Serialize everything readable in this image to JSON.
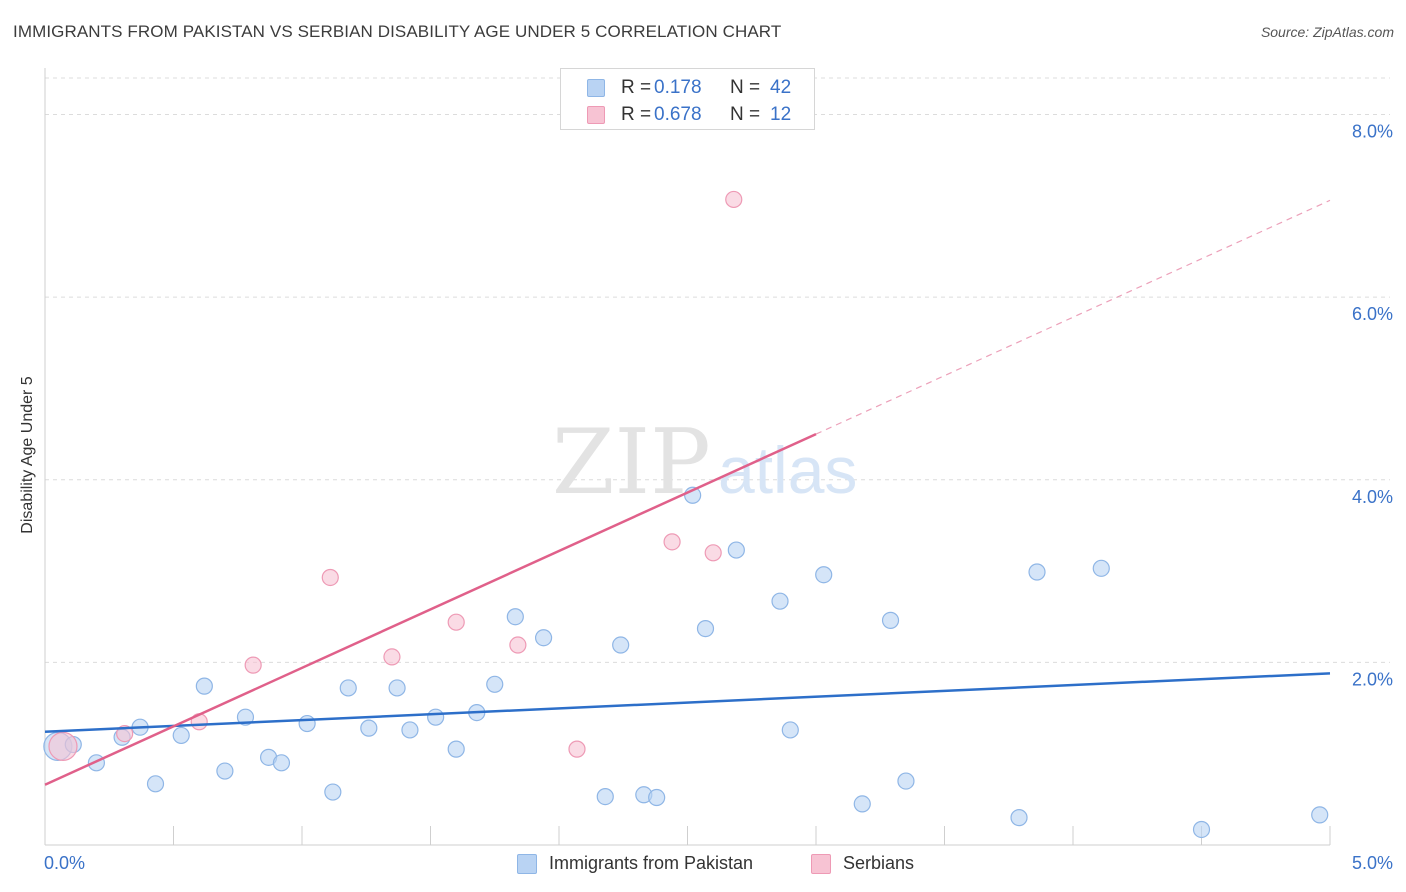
{
  "title": "IMMIGRANTS FROM PAKISTAN VS SERBIAN DISABILITY AGE UNDER 5 CORRELATION CHART",
  "source": "Source: ZipAtlas.com",
  "watermark": {
    "zip": "ZIP",
    "atlas": "atlas"
  },
  "colors": {
    "blue_fill": "#b9d3f3",
    "blue_stroke": "#8fb6e6",
    "blue_line": "#2d6fc9",
    "pink_fill": "#f7c3d3",
    "pink_stroke": "#ee9ab5",
    "pink_line": "#e0608a",
    "tick_label": "#3a72c8",
    "grid": "#dcdcdc"
  },
  "legend_top": {
    "rows": [
      {
        "r_label": "R =",
        "r_value": "0.178",
        "n_label": "N =",
        "n_value": "42",
        "color": "#b9d3f3"
      },
      {
        "r_label": "R =",
        "r_value": "0.678",
        "n_label": "N =",
        "n_value": "12",
        "color": "#f7c3d3"
      }
    ]
  },
  "legend_bottom": [
    {
      "label": "Immigrants from Pakistan",
      "color": "#b9d3f3"
    },
    {
      "label": "Serbians",
      "color": "#f7c3d3"
    }
  ],
  "chart_data": {
    "type": "scatter",
    "title": "IMMIGRANTS FROM PAKISTAN VS SERBIAN DISABILITY AGE UNDER 5 CORRELATION CHART",
    "xlabel": "",
    "ylabel": "Disability Age Under 5",
    "xlim": [
      0,
      5.0
    ],
    "ylim": [
      0,
      8.4
    ],
    "x_tick_labels": [
      "0.0%",
      "5.0%"
    ],
    "y_ticks": [
      2.0,
      4.0,
      6.0,
      8.0
    ],
    "y_tick_labels": [
      "2.0%",
      "4.0%",
      "6.0%",
      "8.0%"
    ],
    "grid": true,
    "legend_position": "top-center",
    "series": [
      {
        "name": "Immigrants from Pakistan",
        "r": 0.178,
        "n": 42,
        "trend": {
          "x": [
            0.0,
            5.0
          ],
          "y": [
            1.24,
            1.88
          ]
        },
        "points": [
          {
            "x": 0.05,
            "y": 1.08,
            "big": true
          },
          {
            "x": 0.11,
            "y": 1.1
          },
          {
            "x": 0.2,
            "y": 0.9
          },
          {
            "x": 0.3,
            "y": 1.18
          },
          {
            "x": 0.37,
            "y": 1.29
          },
          {
            "x": 0.43,
            "y": 0.67
          },
          {
            "x": 0.53,
            "y": 1.2
          },
          {
            "x": 0.62,
            "y": 1.74
          },
          {
            "x": 0.7,
            "y": 0.81
          },
          {
            "x": 0.78,
            "y": 1.4
          },
          {
            "x": 0.87,
            "y": 0.96
          },
          {
            "x": 0.92,
            "y": 0.9
          },
          {
            "x": 1.02,
            "y": 1.33
          },
          {
            "x": 1.12,
            "y": 0.58
          },
          {
            "x": 1.18,
            "y": 1.72
          },
          {
            "x": 1.26,
            "y": 1.28
          },
          {
            "x": 1.37,
            "y": 1.72
          },
          {
            "x": 1.42,
            "y": 1.26
          },
          {
            "x": 1.52,
            "y": 1.4
          },
          {
            "x": 1.6,
            "y": 1.05
          },
          {
            "x": 1.68,
            "y": 1.45
          },
          {
            "x": 1.75,
            "y": 1.76
          },
          {
            "x": 1.83,
            "y": 2.5
          },
          {
            "x": 1.94,
            "y": 2.27
          },
          {
            "x": 2.18,
            "y": 0.53
          },
          {
            "x": 2.24,
            "y": 2.19
          },
          {
            "x": 2.33,
            "y": 0.55
          },
          {
            "x": 2.38,
            "y": 0.52
          },
          {
            "x": 2.52,
            "y": 3.83
          },
          {
            "x": 2.57,
            "y": 2.37
          },
          {
            "x": 2.69,
            "y": 3.23
          },
          {
            "x": 2.86,
            "y": 2.67
          },
          {
            "x": 2.9,
            "y": 1.26
          },
          {
            "x": 3.03,
            "y": 2.96
          },
          {
            "x": 3.18,
            "y": 0.45
          },
          {
            "x": 3.29,
            "y": 2.46
          },
          {
            "x": 3.35,
            "y": 0.7
          },
          {
            "x": 3.79,
            "y": 0.3
          },
          {
            "x": 3.86,
            "y": 2.99
          },
          {
            "x": 4.11,
            "y": 3.03
          },
          {
            "x": 4.5,
            "y": 0.17
          },
          {
            "x": 4.96,
            "y": 0.33
          }
        ]
      },
      {
        "name": "Serbians",
        "r": 0.678,
        "n": 12,
        "trend": {
          "x": [
            0.0,
            3.0
          ],
          "y": [
            0.66,
            4.5
          ]
        },
        "trend_dashed": {
          "x": [
            3.0,
            5.0
          ],
          "y": [
            4.5,
            7.06
          ]
        },
        "points": [
          {
            "x": 0.07,
            "y": 1.08,
            "big": true
          },
          {
            "x": 0.31,
            "y": 1.22
          },
          {
            "x": 0.6,
            "y": 1.35
          },
          {
            "x": 0.81,
            "y": 1.97
          },
          {
            "x": 1.11,
            "y": 2.93
          },
          {
            "x": 1.35,
            "y": 2.06
          },
          {
            "x": 1.6,
            "y": 2.44
          },
          {
            "x": 1.84,
            "y": 2.19
          },
          {
            "x": 2.07,
            "y": 1.05
          },
          {
            "x": 2.44,
            "y": 3.32
          },
          {
            "x": 2.6,
            "y": 3.2
          },
          {
            "x": 2.68,
            "y": 7.07
          }
        ]
      }
    ]
  }
}
